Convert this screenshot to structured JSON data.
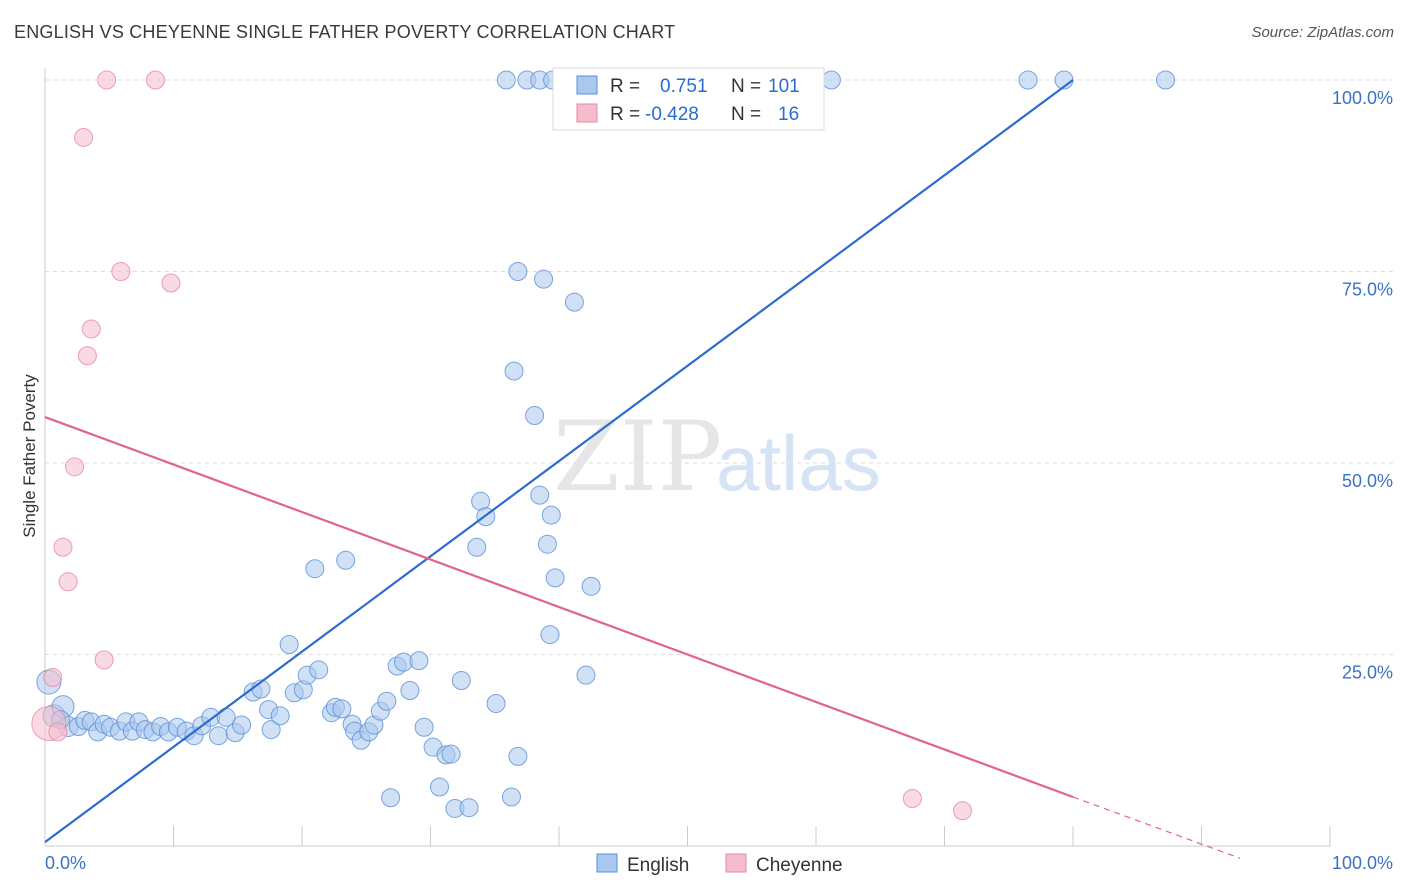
{
  "title": "ENGLISH VS CHEYENNE SINGLE FATHER POVERTY CORRELATION CHART",
  "source": "Source: ZipAtlas.com",
  "watermark": {
    "zip": "ZIP",
    "atlas": "atlas"
  },
  "colors": {
    "english_fill": "#a9c8ef",
    "english_stroke": "#5b8fd8",
    "english_line": "#2c6bd1",
    "cheyenne_fill": "#f5bccb",
    "cheyenne_stroke": "#e48aa3",
    "cheyenne_line": "#e0648c",
    "grid": "#dddddd",
    "tick_label": "#3a72c4"
  },
  "legend_box": {
    "rows": [
      {
        "r_label": "R =",
        "r_value": "0.751",
        "n_label": "N =",
        "n_value": "101"
      },
      {
        "r_label": "R =",
        "r_value": "-0.428",
        "n_label": "N =",
        "n_value": "16"
      }
    ]
  },
  "chart_data": {
    "type": "scatter",
    "title": "ENGLISH VS CHEYENNE SINGLE FATHER POVERTY CORRELATION CHART",
    "xlabel": "",
    "ylabel": "Single Father Poverty",
    "xlim": [
      0,
      100
    ],
    "ylim": [
      0,
      100
    ],
    "x_tick_labels": [
      "0.0%",
      "100.0%"
    ],
    "y_ticks": [
      25,
      50,
      75,
      100
    ],
    "y_tick_labels": [
      "25.0%",
      "50.0%",
      "75.0%",
      "100.0%"
    ],
    "grid": "horizontal dashed",
    "legend_position": "top-center",
    "series": [
      {
        "name": "English",
        "R": 0.751,
        "N": 101,
        "trend": {
          "x": [
            0,
            80
          ],
          "y": [
            0.5,
            100
          ]
        },
        "points": [
          [
            0.3,
            21.4
          ],
          [
            0.7,
            17.0
          ],
          [
            1.4,
            18.2
          ],
          [
            1.8,
            15.6
          ],
          [
            1.2,
            16.5
          ],
          [
            2.6,
            15.6
          ],
          [
            3.1,
            16.4
          ],
          [
            3.6,
            16.2
          ],
          [
            4.1,
            14.9
          ],
          [
            4.6,
            15.9
          ],
          [
            5.1,
            15.5
          ],
          [
            5.8,
            15.0
          ],
          [
            6.3,
            16.2
          ],
          [
            6.8,
            15.0
          ],
          [
            7.3,
            16.2
          ],
          [
            7.8,
            15.2
          ],
          [
            8.4,
            14.9
          ],
          [
            9.0,
            15.6
          ],
          [
            9.6,
            14.9
          ],
          [
            10.3,
            15.5
          ],
          [
            11.0,
            15.0
          ],
          [
            11.6,
            14.4
          ],
          [
            12.2,
            15.7
          ],
          [
            12.9,
            16.8
          ],
          [
            13.5,
            14.4
          ],
          [
            14.1,
            16.8
          ],
          [
            14.8,
            14.8
          ],
          [
            15.3,
            15.8
          ],
          [
            16.2,
            20.1
          ],
          [
            16.8,
            20.5
          ],
          [
            17.4,
            17.8
          ],
          [
            17.6,
            15.2
          ],
          [
            18.3,
            17.0
          ],
          [
            19.0,
            26.3
          ],
          [
            19.4,
            20.0
          ],
          [
            20.1,
            20.4
          ],
          [
            20.4,
            22.3
          ],
          [
            21.3,
            23.0
          ],
          [
            21.0,
            36.2
          ],
          [
            22.3,
            17.4
          ],
          [
            22.6,
            18.1
          ],
          [
            23.1,
            17.9
          ],
          [
            23.9,
            15.9
          ],
          [
            24.1,
            15.0
          ],
          [
            24.6,
            13.8
          ],
          [
            25.2,
            14.9
          ],
          [
            25.6,
            15.8
          ],
          [
            26.1,
            17.6
          ],
          [
            26.6,
            18.9
          ],
          [
            23.4,
            37.3
          ],
          [
            27.4,
            23.5
          ],
          [
            27.9,
            24.0
          ],
          [
            28.4,
            20.3
          ],
          [
            29.1,
            24.2
          ],
          [
            29.5,
            15.5
          ],
          [
            26.9,
            6.3
          ],
          [
            30.2,
            12.9
          ],
          [
            30.7,
            7.7
          ],
          [
            31.2,
            11.9
          ],
          [
            31.6,
            12.0
          ],
          [
            31.9,
            4.9
          ],
          [
            32.4,
            21.6
          ],
          [
            33.0,
            5.0
          ],
          [
            33.6,
            39.0
          ],
          [
            33.9,
            45.0
          ],
          [
            34.3,
            43.0
          ],
          [
            35.1,
            18.6
          ],
          [
            36.3,
            6.4
          ],
          [
            36.8,
            11.7
          ],
          [
            36.5,
            62.0
          ],
          [
            36.8,
            75.0
          ],
          [
            38.1,
            56.2
          ],
          [
            38.5,
            45.8
          ],
          [
            38.8,
            74.0
          ],
          [
            39.4,
            43.2
          ],
          [
            39.1,
            39.4
          ],
          [
            39.7,
            35.0
          ],
          [
            39.3,
            27.6
          ],
          [
            41.2,
            71.0
          ],
          [
            42.1,
            22.3
          ],
          [
            42.5,
            33.9
          ],
          [
            35.9,
            100
          ],
          [
            37.5,
            100
          ],
          [
            38.5,
            100
          ],
          [
            39.5,
            100
          ],
          [
            40.6,
            100
          ],
          [
            41.5,
            100
          ],
          [
            43.8,
            100
          ],
          [
            44.6,
            100
          ],
          [
            45.5,
            100
          ],
          [
            46.3,
            100
          ],
          [
            47.5,
            100
          ],
          [
            48.3,
            100
          ],
          [
            50.4,
            100
          ],
          [
            51.2,
            100
          ],
          [
            54.0,
            100
          ],
          [
            55.7,
            100
          ],
          [
            61.2,
            100
          ],
          [
            76.5,
            100
          ],
          [
            79.3,
            100
          ],
          [
            87.2,
            100
          ]
        ]
      },
      {
        "name": "Cheyenne",
        "R": -0.428,
        "N": 16,
        "trend": {
          "x": [
            0,
            80
          ],
          "y": [
            56,
            6.4
          ],
          "dashed_extension": {
            "x": [
              80,
              93
            ],
            "y": [
              6.4,
              -1.6
            ]
          }
        },
        "points": [
          [
            0.3,
            16.0
          ],
          [
            0.6,
            22.0
          ],
          [
            1.0,
            14.9
          ],
          [
            1.4,
            39.0
          ],
          [
            1.8,
            34.5
          ],
          [
            2.3,
            49.5
          ],
          [
            3.0,
            92.5
          ],
          [
            3.3,
            64.0
          ],
          [
            3.6,
            67.5
          ],
          [
            4.6,
            24.3
          ],
          [
            4.8,
            100
          ],
          [
            5.9,
            75.0
          ],
          [
            8.6,
            100
          ],
          [
            9.8,
            73.5
          ],
          [
            67.5,
            6.2
          ],
          [
            71.4,
            4.6
          ]
        ]
      }
    ]
  },
  "bottom_legend": [
    {
      "label": "English"
    },
    {
      "label": "Cheyenne"
    }
  ]
}
